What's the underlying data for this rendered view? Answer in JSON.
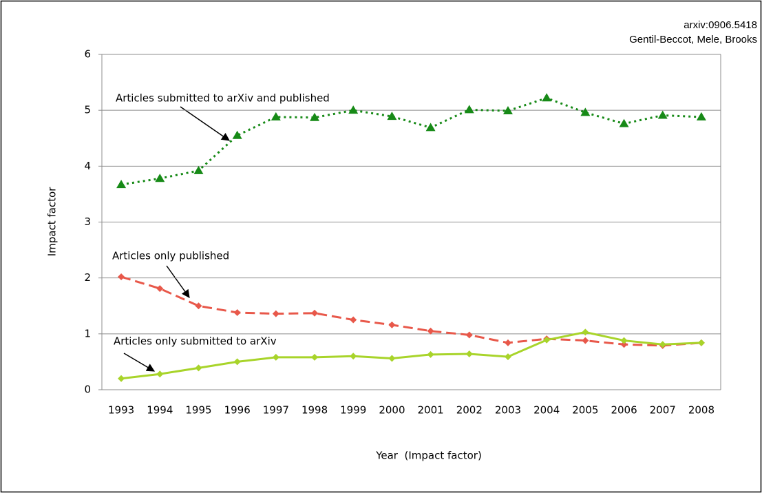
{
  "chart_data": {
    "type": "line",
    "annotations": [
      "arxiv:0906.5418",
      "Gentil-Beccot, Mele, Brooks"
    ],
    "xlabel": "Year  (Impact factor)",
    "ylabel": "Impact factor",
    "categories": [
      "1993",
      "1994",
      "1995",
      "1996",
      "1997",
      "1998",
      "1999",
      "2000",
      "2001",
      "2002",
      "2003",
      "2004",
      "2005",
      "2006",
      "2007",
      "2008"
    ],
    "ylim": [
      0,
      6
    ],
    "yticks": [
      0,
      1,
      2,
      3,
      4,
      5,
      6
    ],
    "grid": true,
    "series": [
      {
        "name": "Articles submitted to arXiv and published",
        "color": "#178a17",
        "marker": "triangle",
        "line_style": "dotted",
        "values": [
          3.67,
          3.78,
          3.92,
          4.55,
          4.88,
          4.87,
          5.0,
          4.89,
          4.69,
          5.01,
          4.99,
          5.22,
          4.96,
          4.76,
          4.91,
          4.88
        ]
      },
      {
        "name": "Articles only published",
        "color": "#e8584a",
        "marker": "diamond",
        "line_style": "dashed",
        "values": [
          2.02,
          1.81,
          1.5,
          1.38,
          1.36,
          1.37,
          1.25,
          1.16,
          1.05,
          0.98,
          0.84,
          0.91,
          0.88,
          0.81,
          0.79,
          0.84
        ]
      },
      {
        "name": "Articles only submitted to arXiv",
        "color": "#a8d42a",
        "marker": "diamond",
        "line_style": "solid",
        "values": [
          0.2,
          0.28,
          0.39,
          0.5,
          0.58,
          0.58,
          0.6,
          0.56,
          0.63,
          0.64,
          0.59,
          0.89,
          1.03,
          0.88,
          0.81,
          0.84
        ]
      }
    ]
  }
}
